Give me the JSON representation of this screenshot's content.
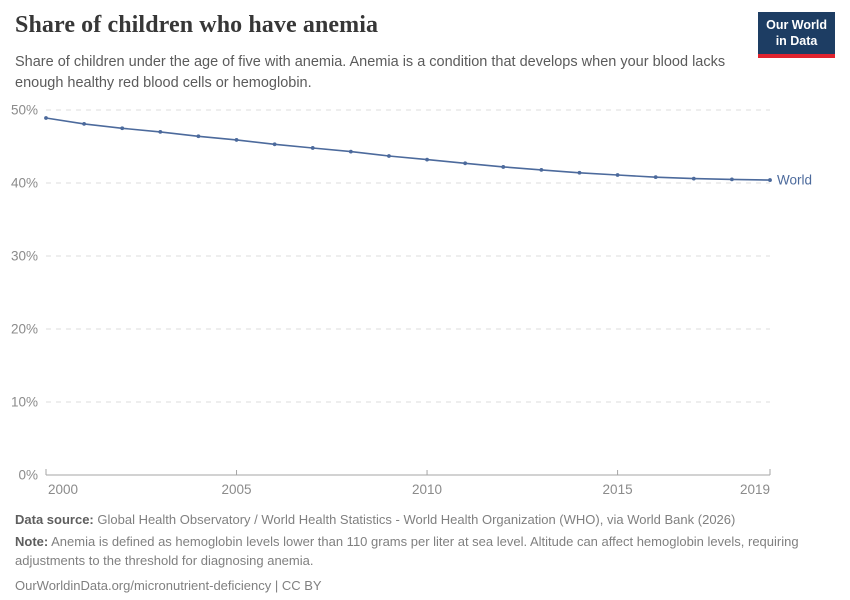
{
  "header": {
    "title": "Share of children who have anemia",
    "subtitle": "Share of children under the age of five with anemia. Anemia is a condition that develops when your blood lacks enough healthy red blood cells or hemoglobin.",
    "logo": {
      "line1": "Our World",
      "line2": "in Data"
    }
  },
  "chart_data": {
    "type": "line",
    "title": "Share of children who have anemia",
    "x": [
      2000,
      2001,
      2002,
      2003,
      2004,
      2005,
      2006,
      2007,
      2008,
      2009,
      2010,
      2011,
      2012,
      2013,
      2014,
      2015,
      2016,
      2017,
      2018,
      2019
    ],
    "series": [
      {
        "name": "World",
        "color": "#4c6a9c",
        "values": [
          48.9,
          48.1,
          47.5,
          47.0,
          46.4,
          45.9,
          45.3,
          44.8,
          44.3,
          43.7,
          43.2,
          42.7,
          42.2,
          41.8,
          41.4,
          41.1,
          40.8,
          40.6,
          40.5,
          40.4
        ]
      }
    ],
    "xlabel": "",
    "ylabel": "",
    "ylim": [
      0,
      50
    ],
    "yticks": [
      0,
      10,
      20,
      30,
      40,
      50
    ],
    "ytick_suffix": "%",
    "xticks": [
      2000,
      2005,
      2010,
      2015,
      2019
    ],
    "grid": "horizontal-dashed",
    "legend_position": "line-end-label"
  },
  "axis_style": {
    "grid_color": "#dcdcdc",
    "axis_color": "#a5a5a5",
    "tick_label_color": "#8b8b8b"
  },
  "footer": {
    "data_source_label": "Data source:",
    "data_source_text": "Global Health Observatory / World Health Statistics - World Health Organization (WHO), via World Bank (2026)",
    "note_label": "Note:",
    "note_text": "Anemia is defined as hemoglobin levels lower than 110 grams per liter at sea level. Altitude can affect hemoglobin levels, requiring adjustments to the threshold for diagnosing anemia.",
    "url": "OurWorldinData.org/micronutrient-deficiency",
    "separator": " | ",
    "license": "CC BY"
  }
}
